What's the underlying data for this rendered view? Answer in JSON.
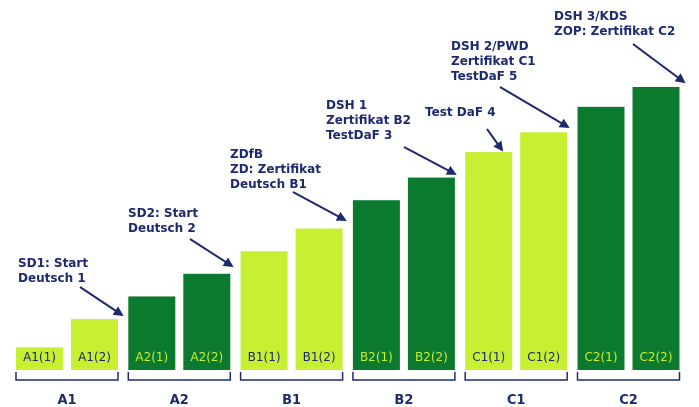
{
  "chart_data": {
    "type": "bar",
    "title": "",
    "xlabel": "",
    "ylabel": "",
    "ylim": [
      0,
      100
    ],
    "categories": [
      "A1(1)",
      "A1(2)",
      "A2(1)",
      "A2(2)",
      "B1(1)",
      "B1(2)",
      "B2(1)",
      "B2(2)",
      "C1(1)",
      "C1(2)",
      "C2(1)",
      "C2(2)"
    ],
    "values": [
      8,
      18,
      26,
      34,
      42,
      50,
      60,
      68,
      77,
      84,
      93,
      100
    ],
    "groups": [
      "A1",
      "A2",
      "B1",
      "B2",
      "C1",
      "C2"
    ],
    "colors": {
      "light": "#c8f032",
      "dark": "#0c7a2e",
      "label_on_light": "#1e2a6e",
      "label_on_dark": "#c8f032",
      "navy": "#1e2a6e"
    },
    "annotations": [
      {
        "target": "A1(2)",
        "lines": [
          "SD1: Start",
          "Deutsch 1"
        ]
      },
      {
        "target": "A2(2)",
        "lines": [
          "SD2: Start",
          "Deutsch 2"
        ]
      },
      {
        "target": "B1(2)",
        "lines": [
          "ZDfB",
          "ZD: Zertifikat",
          "Deutsch B1"
        ]
      },
      {
        "target": "B2(2)",
        "lines": [
          "DSH 1",
          "Zertifikat B2",
          "TestDaF 3"
        ]
      },
      {
        "target": "C1(1)",
        "lines": [
          "Test DaF 4"
        ]
      },
      {
        "target": "C1(2)",
        "lines": [
          "DSH 2/PWD",
          "Zertifikat C1",
          "TestDaF 5"
        ]
      },
      {
        "target": "C2(2)",
        "lines": [
          "DSH 3/KDS",
          "ZOP: Zertifikat C2"
        ]
      }
    ]
  }
}
